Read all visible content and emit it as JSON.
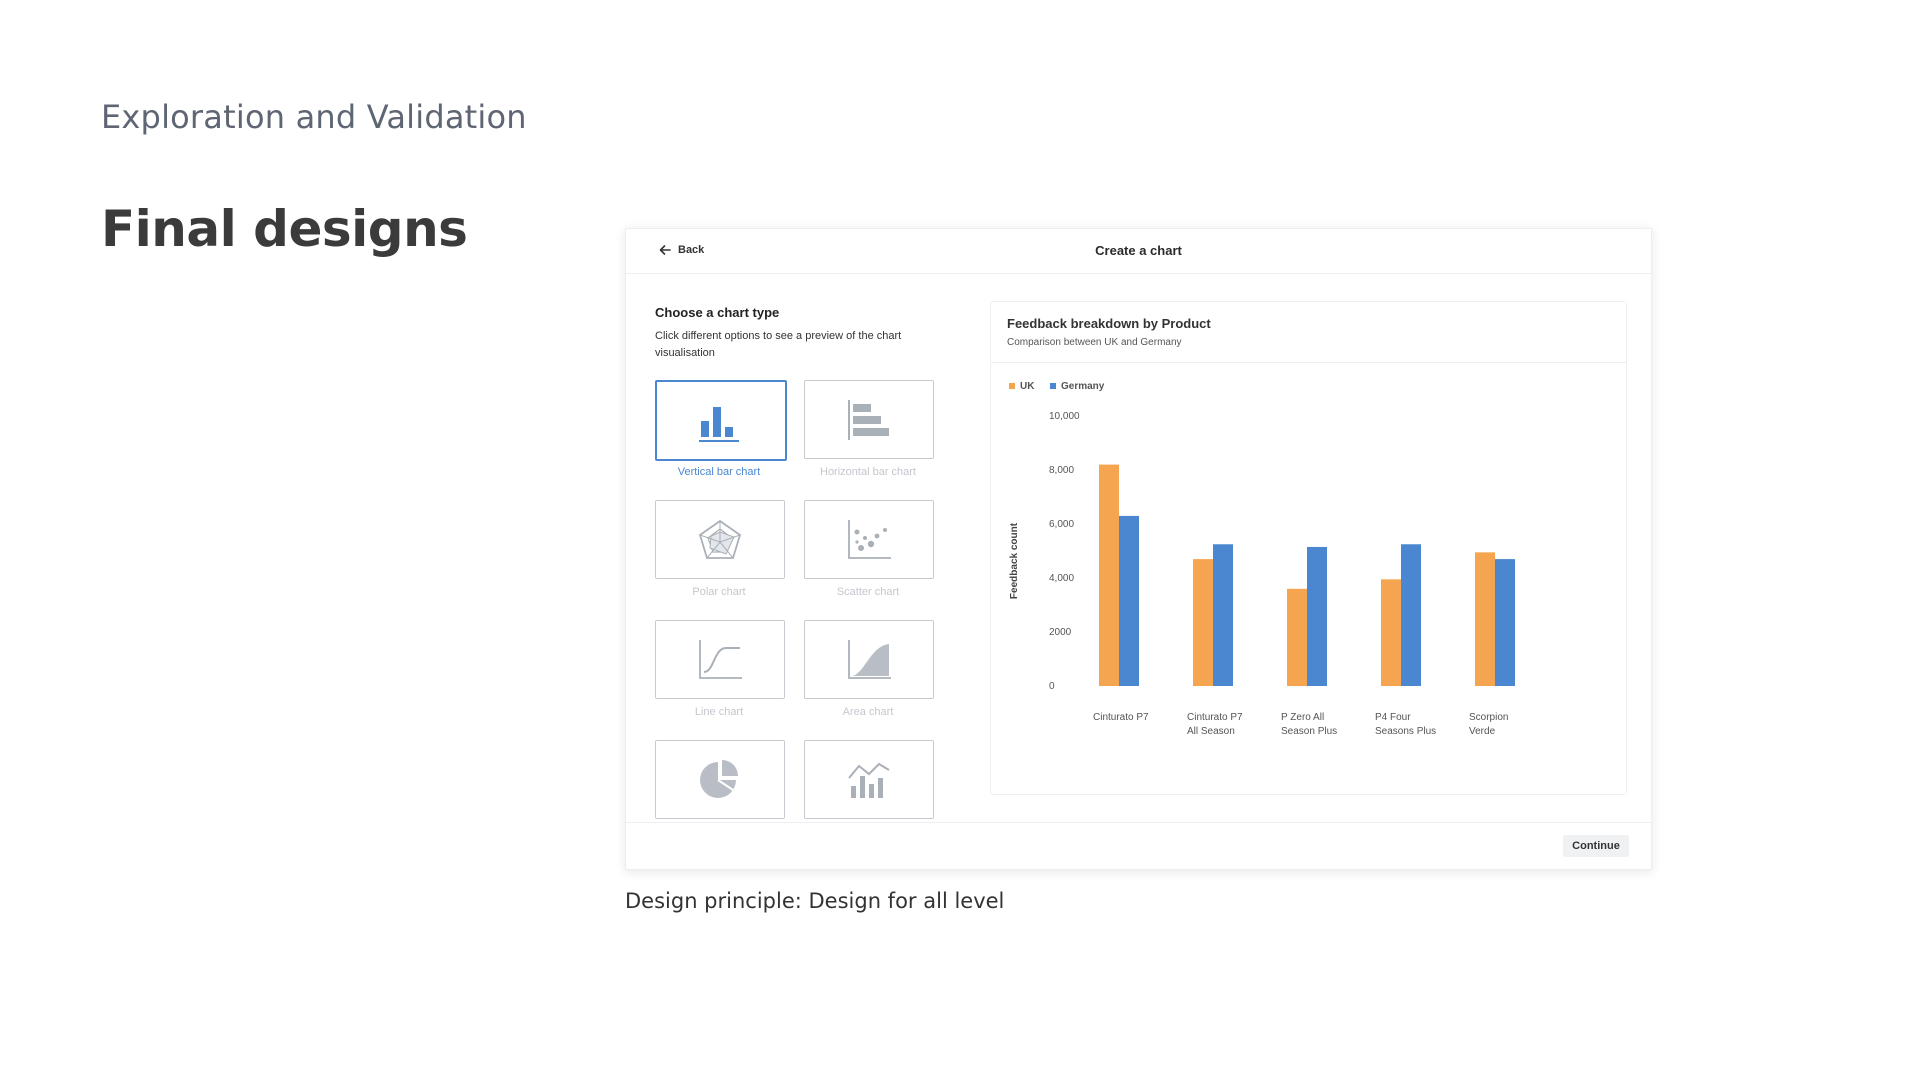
{
  "section_title": "Exploration and Validation",
  "heading": "Final designs",
  "caption": "Design principle: Design for all level",
  "mock": {
    "back_label": "Back",
    "title": "Create a chart",
    "choose_title": "Choose a chart type",
    "choose_desc": "Click different options to see a preview of the chart visualisation",
    "continue_label": "Continue",
    "tiles": [
      {
        "label": "Vertical bar chart",
        "icon": "vertical-bar-chart-icon",
        "selected": true
      },
      {
        "label": "Horizontal bar chart",
        "icon": "horizontal-bar-chart-icon",
        "selected": false
      },
      {
        "label": "Polar chart",
        "icon": "polar-chart-icon",
        "selected": false
      },
      {
        "label": "Scatter chart",
        "icon": "scatter-chart-icon",
        "selected": false
      },
      {
        "label": "Line chart",
        "icon": "line-chart-icon",
        "selected": false
      },
      {
        "label": "Area chart",
        "icon": "area-chart-icon",
        "selected": false
      },
      {
        "label": "",
        "icon": "pie-chart-icon",
        "selected": false
      },
      {
        "label": "",
        "icon": "combo-chart-icon",
        "selected": false
      }
    ],
    "colors": {
      "accent": "#4a87d0",
      "uk": "#f5a54f",
      "germany": "#4a87d0"
    }
  },
  "chart_data": {
    "type": "bar",
    "title": "Feedback breakdown by Product",
    "subtitle": "Comparison between UK and Germany",
    "ylabel": "Feedback count",
    "xlabel": "",
    "ylim": [
      0,
      10000
    ],
    "yticks": [
      0,
      2000,
      4000,
      6000,
      8000,
      10000
    ],
    "ytick_labels": [
      "0",
      "2000",
      "4,000",
      "6,000",
      "8,000",
      "10,000"
    ],
    "categories": [
      [
        "Cinturato P7"
      ],
      [
        "Cinturato P7",
        "All Season"
      ],
      [
        "P Zero All",
        "Season Plus"
      ],
      [
        "P4 Four",
        "Seasons Plus"
      ],
      [
        "Scorpion",
        "Verde"
      ]
    ],
    "series": [
      {
        "name": "UK",
        "color": "#f5a54f",
        "values": [
          8200,
          4700,
          3600,
          3950,
          4950
        ]
      },
      {
        "name": "Germany",
        "color": "#4a87d0",
        "values": [
          6300,
          5250,
          5150,
          5250,
          4700
        ]
      }
    ],
    "legend": "top-left",
    "grid": false
  }
}
